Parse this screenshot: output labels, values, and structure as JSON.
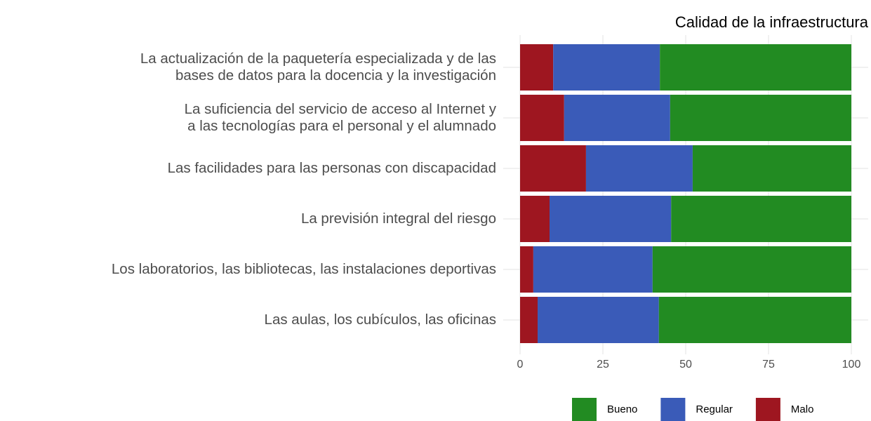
{
  "chart_data": {
    "type": "stacked_barh",
    "title": "Calidad de la infraestructura",
    "categories": [
      "La actualización de la paquetería especializada y de las\nbases de datos para la docencia y la investigación",
      "La suficiencia del servicio de acceso al Internet y\na las tecnologías para el personal y el alumnado",
      "Las facilidades para las personas con discapacidad",
      "La previsión integral del riesgo",
      "Los laboratorios, las bibliotecas, las instalaciones deportivas",
      "Las aulas, los cubículos, las oficinas"
    ],
    "series": [
      {
        "name": "Bueno",
        "color": "#228b22",
        "values": [
          57.8,
          54.7,
          47.9,
          54.4,
          60.0,
          58.1
        ]
      },
      {
        "name": "Regular",
        "color": "#3a5bb8",
        "values": [
          32.2,
          32.0,
          32.2,
          36.7,
          36.0,
          36.6
        ]
      },
      {
        "name": "Malo",
        "color": "#9e1620",
        "values": [
          10.0,
          13.3,
          19.9,
          8.9,
          4.0,
          5.3
        ]
      }
    ],
    "xlim": [
      0,
      100
    ],
    "xticks": [
      0,
      25,
      50,
      75,
      100
    ],
    "grid": true,
    "legend": "bottom"
  }
}
